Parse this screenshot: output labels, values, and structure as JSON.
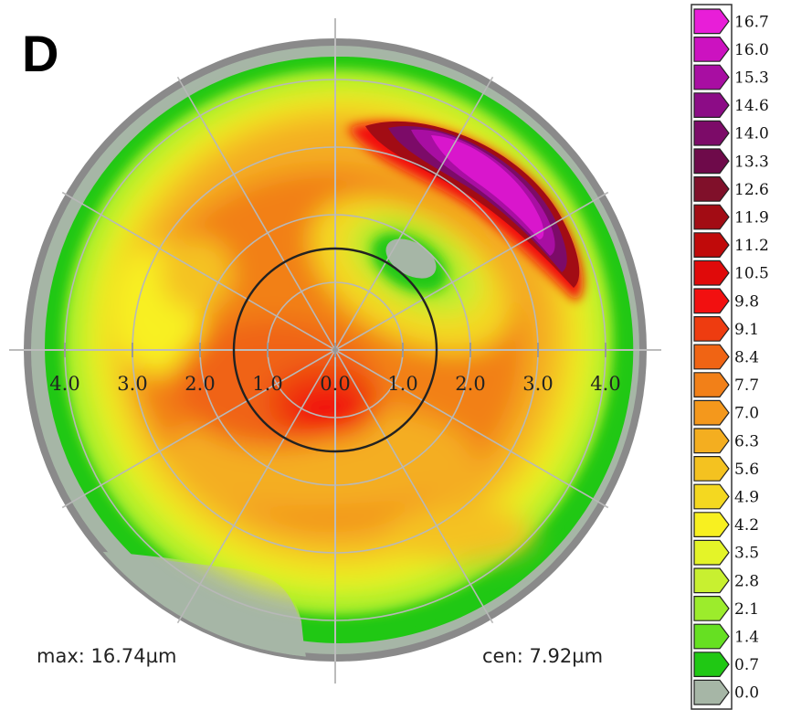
{
  "panel_label": "D",
  "readouts": {
    "max": "max: 16.74µm",
    "cen": "cen: 7.92µm"
  },
  "chart_data": {
    "type": "heatmap",
    "projection": "polar",
    "unit": "µm",
    "radial_ticks": [
      "4.0",
      "3.0",
      "2.0",
      "1.0",
      "0.0",
      "1.0",
      "2.0",
      "3.0",
      "4.0"
    ],
    "radial_range": [
      0,
      4.0
    ],
    "inner_circle_radius": 1.5,
    "max": 16.74,
    "center": 7.92,
    "colorbar": {
      "levels": [
        {
          "value": "16.7",
          "color": "#e81ed8"
        },
        {
          "value": "16.0",
          "color": "#cc12c0"
        },
        {
          "value": "15.3",
          "color": "#a80ea2"
        },
        {
          "value": "14.6",
          "color": "#8c0c86"
        },
        {
          "value": "14.0",
          "color": "#7c0b68"
        },
        {
          "value": "13.3",
          "color": "#6e0a4a"
        },
        {
          "value": "12.6",
          "color": "#80102a"
        },
        {
          "value": "11.9",
          "color": "#a20c14"
        },
        {
          "value": "11.2",
          "color": "#c00a0a"
        },
        {
          "value": "10.5",
          "color": "#e00a0a"
        },
        {
          "value": "9.8",
          "color": "#f21010"
        },
        {
          "value": "9.1",
          "color": "#ee3c10"
        },
        {
          "value": "8.4",
          "color": "#f06414"
        },
        {
          "value": "7.7",
          "color": "#f28018"
        },
        {
          "value": "7.0",
          "color": "#f4981c"
        },
        {
          "value": "6.3",
          "color": "#f4ae20"
        },
        {
          "value": "5.6",
          "color": "#f4c220"
        },
        {
          "value": "4.9",
          "color": "#f4d820"
        },
        {
          "value": "4.2",
          "color": "#f8f020"
        },
        {
          "value": "3.5",
          "color": "#e4f428"
        },
        {
          "value": "2.8",
          "color": "#c8f030"
        },
        {
          "value": "2.1",
          "color": "#9cec2c"
        },
        {
          "value": "1.4",
          "color": "#66e022"
        },
        {
          "value": "0.7",
          "color": "#20c814"
        },
        {
          "value": "0.0",
          "color": "#a6b6a6"
        }
      ]
    }
  }
}
